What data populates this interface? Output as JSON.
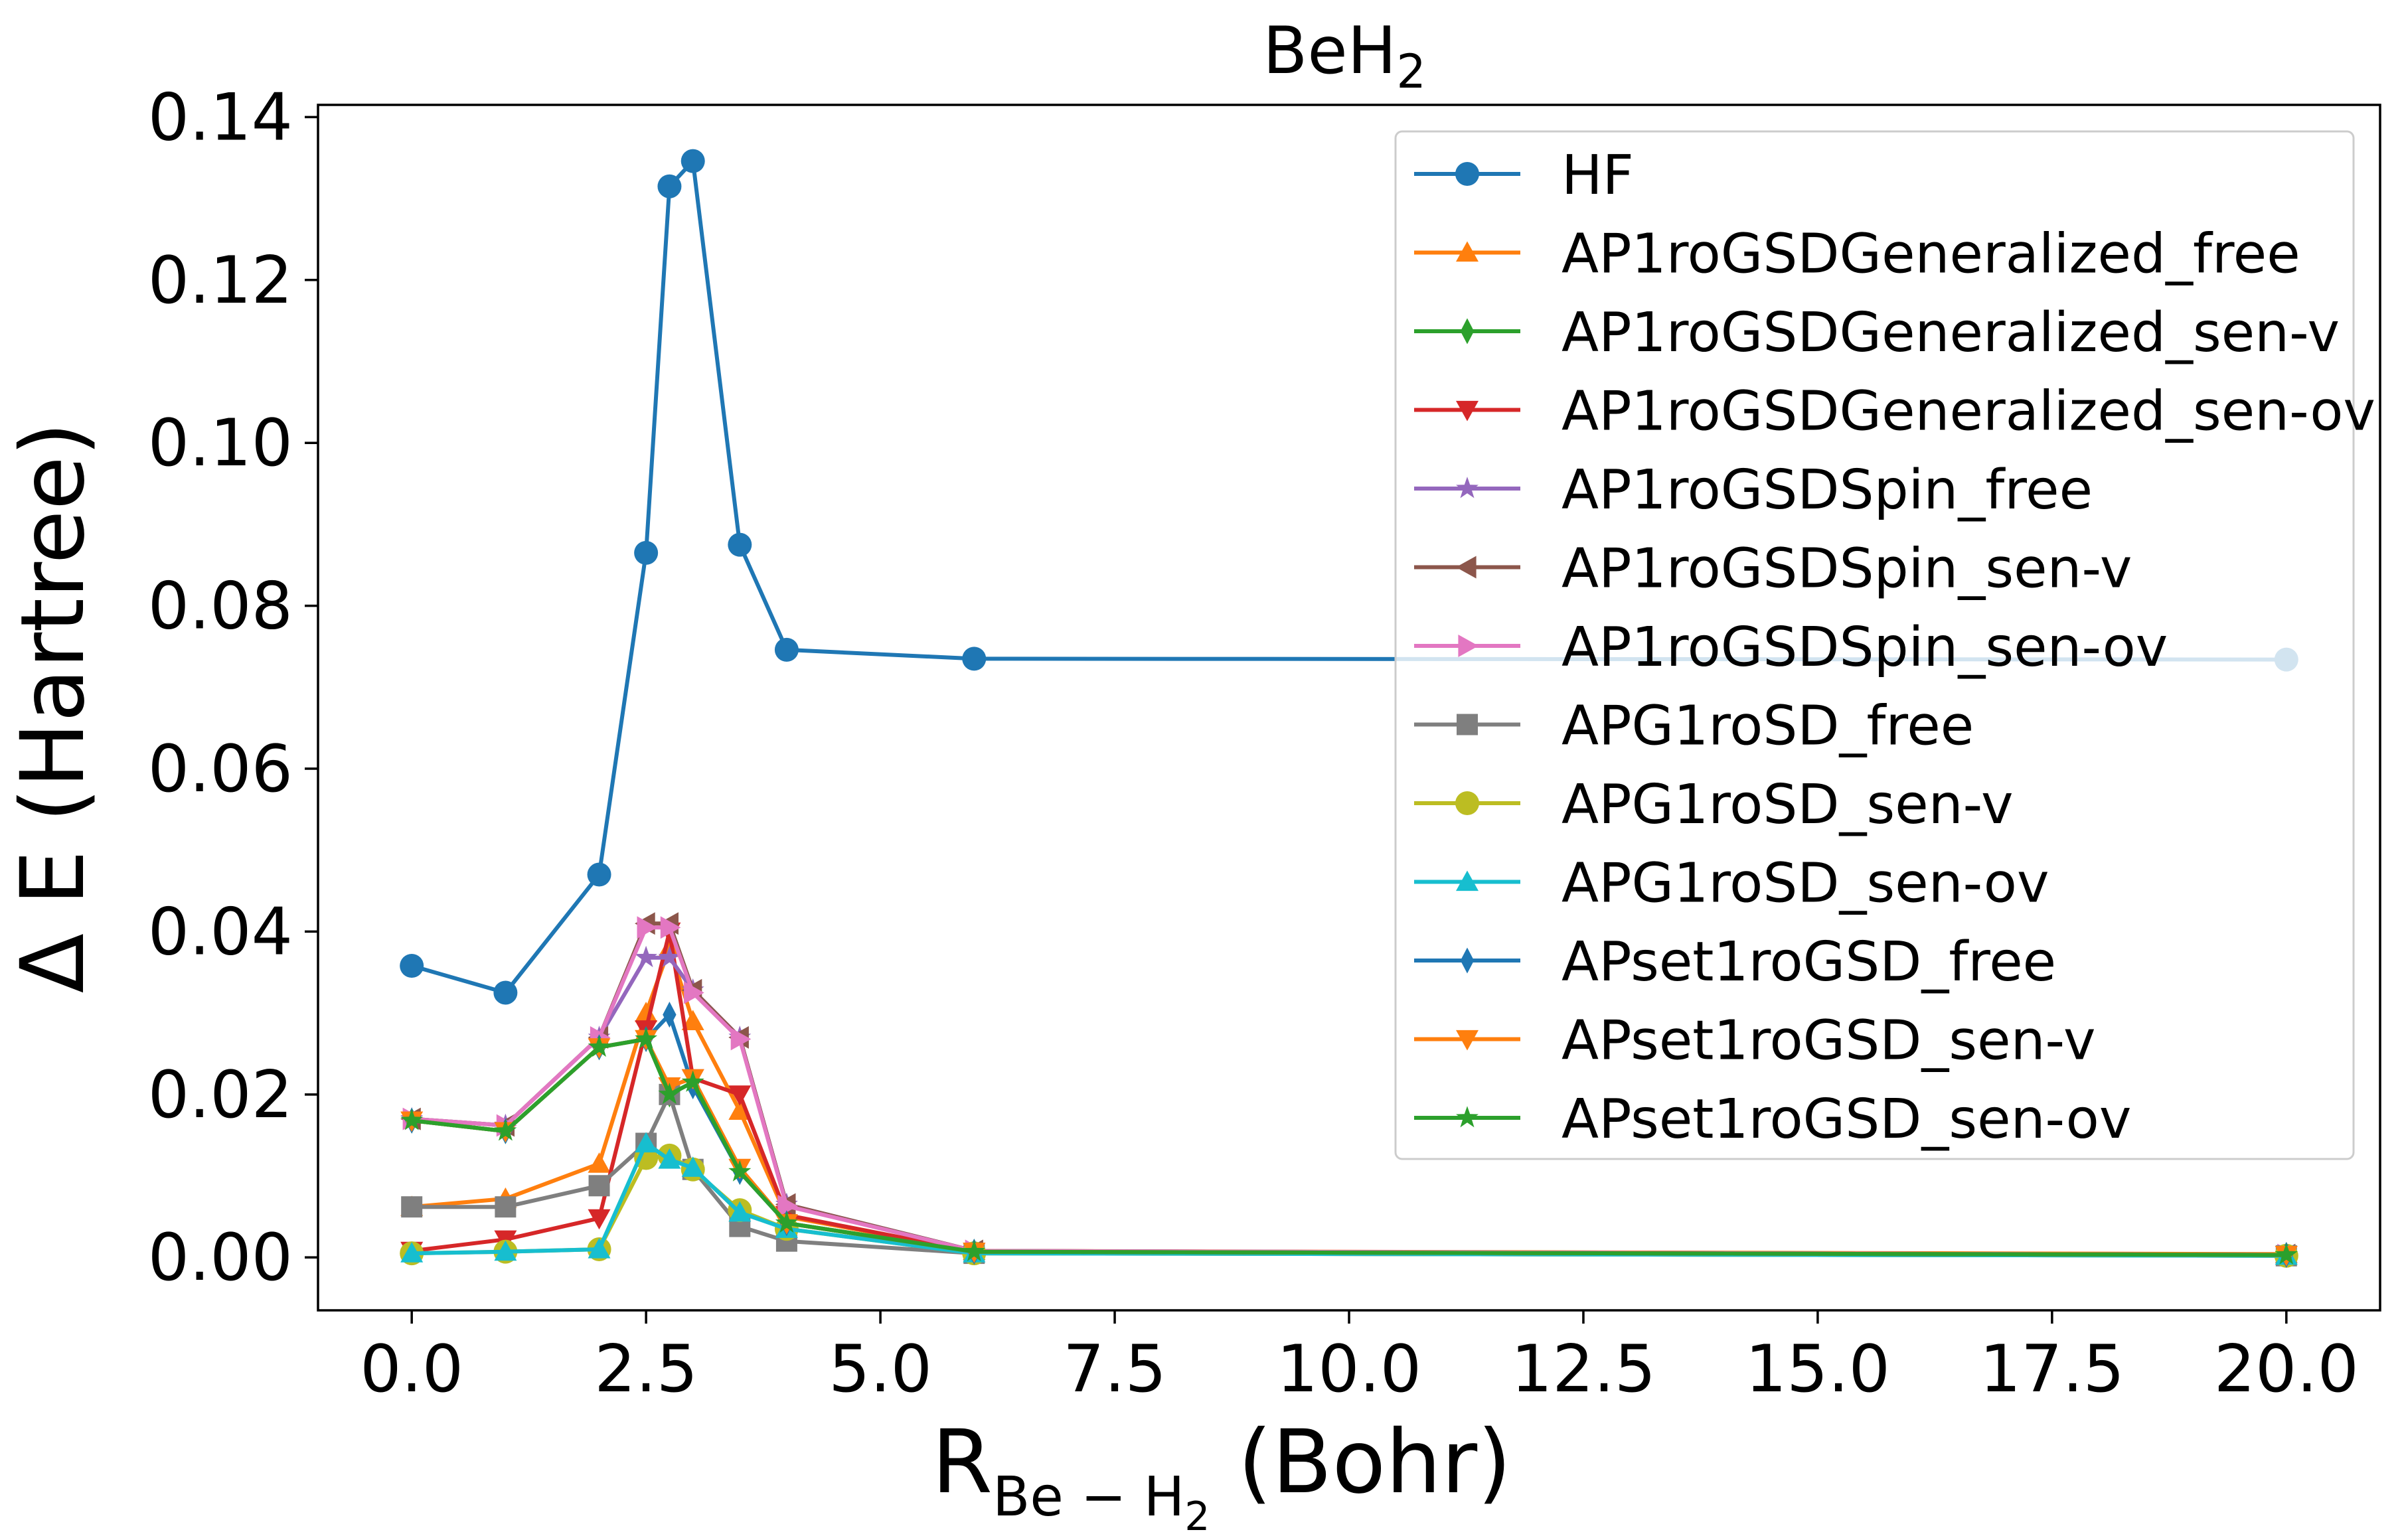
{
  "chart_data": {
    "type": "line",
    "title": "BeH",
    "title_sub": "2",
    "xlabel_main": "R",
    "xlabel_sub_a": "Be − H",
    "xlabel_sub_b": "2",
    "xlabel_unit": " (Bohr)",
    "ylabel": "Δ E (Hartree)",
    "xlim": [
      -1.0,
      21.0
    ],
    "ylim": [
      -0.0065,
      0.1415
    ],
    "xticks": [
      0,
      2.5,
      5,
      7.5,
      10,
      12.5,
      15,
      17.5,
      20
    ],
    "xtick_labels": [
      "0.0",
      "2.5",
      "5.0",
      "7.5",
      "10.0",
      "12.5",
      "15.0",
      "17.5",
      "20.0"
    ],
    "yticks": [
      0,
      0.02,
      0.04,
      0.06,
      0.08,
      0.1,
      0.12,
      0.14
    ],
    "ytick_labels": [
      "0.00",
      "0.02",
      "0.04",
      "0.06",
      "0.08",
      "0.10",
      "0.12",
      "0.14"
    ],
    "grid": false,
    "legend_position": "top-right",
    "x": [
      0,
      1,
      2,
      2.5,
      2.75,
      3,
      3.5,
      4,
      6,
      20
    ],
    "series": [
      {
        "name": "HF",
        "color": "#1f77b4",
        "marker": "circle",
        "values": [
          0.0358,
          0.0325,
          0.047,
          0.0865,
          0.1315,
          0.1346,
          0.0875,
          0.0746,
          0.0735,
          0.0734
        ]
      },
      {
        "name": "AP1roGSDGeneralized_free",
        "color": "#ff7f0e",
        "marker": "triangle-up",
        "values": [
          0.0062,
          0.0072,
          0.0115,
          0.03,
          0.038,
          0.029,
          0.018,
          0.005,
          0.0008,
          0.0004
        ]
      },
      {
        "name": "AP1roGSDGeneralized_sen-v",
        "color": "#2ca02c",
        "marker": "thin-diamond",
        "values": [
          0.0168,
          0.0155,
          0.0258,
          0.0268,
          0.02,
          0.0215,
          0.0105,
          0.0042,
          0.0007,
          0.0003
        ]
      },
      {
        "name": "AP1roGSDGeneralized_sen-ov",
        "color": "#d62728",
        "marker": "triangle-down",
        "values": [
          0.0008,
          0.0022,
          0.0048,
          0.028,
          0.04,
          0.022,
          0.02,
          0.0052,
          0.0007,
          0.0003
        ]
      },
      {
        "name": "AP1roGSDSpin_free",
        "color": "#9467bd",
        "marker": "star",
        "values": [
          0.017,
          0.0162,
          0.027,
          0.0368,
          0.0368,
          0.0328,
          0.027,
          0.0065,
          0.0008,
          0.0003
        ]
      },
      {
        "name": "AP1roGSDSpin_sen-v",
        "color": "#8c564b",
        "marker": "triangle-left",
        "values": [
          0.017,
          0.0162,
          0.027,
          0.041,
          0.041,
          0.0328,
          0.027,
          0.0065,
          0.0008,
          0.0003
        ]
      },
      {
        "name": "AP1roGSDSpin_sen-ov",
        "color": "#e377c2",
        "marker": "triangle-right",
        "values": [
          0.017,
          0.0162,
          0.027,
          0.0405,
          0.0405,
          0.0325,
          0.0268,
          0.0063,
          0.0008,
          0.0003
        ]
      },
      {
        "name": "APG1roSD_free",
        "color": "#7f7f7f",
        "marker": "square",
        "values": [
          0.0062,
          0.0062,
          0.0088,
          0.014,
          0.02,
          0.0108,
          0.0038,
          0.002,
          0.0005,
          0.0002
        ]
      },
      {
        "name": "APG1roSD_sen-v",
        "color": "#bcbd22",
        "marker": "circle",
        "values": [
          0.0005,
          0.0007,
          0.001,
          0.0122,
          0.0125,
          0.0108,
          0.0058,
          0.0035,
          0.0005,
          0.0002
        ]
      },
      {
        "name": "APG1roSD_sen-ov",
        "color": "#17becf",
        "marker": "triangle-up",
        "values": [
          0.0005,
          0.0007,
          0.001,
          0.014,
          0.012,
          0.011,
          0.0055,
          0.0035,
          0.0005,
          0.0002
        ]
      },
      {
        "name": "APset1roGSD_free",
        "color": "#1f77b4",
        "marker": "thin-diamond",
        "values": [
          0.0168,
          0.0155,
          0.0258,
          0.0268,
          0.0298,
          0.021,
          0.0105,
          0.0042,
          0.0007,
          0.0003
        ]
      },
      {
        "name": "APset1roGSD_sen-v",
        "color": "#ff7f0e",
        "marker": "triangle-down",
        "values": [
          0.0168,
          0.0155,
          0.0258,
          0.0268,
          0.021,
          0.022,
          0.011,
          0.0042,
          0.0007,
          0.0003
        ]
      },
      {
        "name": "APset1roGSD_sen-ov",
        "color": "#2ca02c",
        "marker": "star",
        "values": [
          0.0168,
          0.0155,
          0.0258,
          0.0268,
          0.02,
          0.0215,
          0.0105,
          0.0042,
          0.0007,
          0.0003
        ]
      }
    ]
  }
}
